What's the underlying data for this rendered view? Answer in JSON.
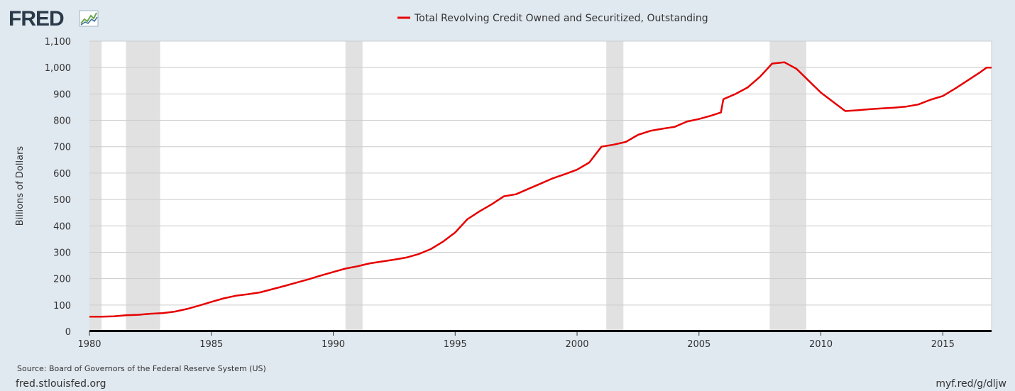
{
  "header": {
    "logo_text": "FRED",
    "legend_label": "Total Revolving Credit Owned and Securitized, Outstanding"
  },
  "footer": {
    "source": "Source: Board of Governors of the Federal Reserve System (US)",
    "site": "fred.stlouisfed.org",
    "short_url": "myf.red/g/dljw"
  },
  "colors": {
    "background": "#e1e9f0",
    "plot_background": "#ffffff",
    "series": "#e60000",
    "recession": "#e1e1e1",
    "grid": "#cccccc",
    "axis": "#000000"
  },
  "chart_data": {
    "type": "line",
    "title": "",
    "xlabel": "",
    "ylabel": "Billions of Dollars",
    "xlim": [
      1980.0,
      2017.0
    ],
    "ylim": [
      0,
      1100
    ],
    "x_ticks": [
      1980,
      1985,
      1990,
      1995,
      2000,
      2005,
      2010,
      2015
    ],
    "x_tick_labels": [
      "1980",
      "1985",
      "1990",
      "1995",
      "2000",
      "2005",
      "2010",
      "2015"
    ],
    "y_ticks": [
      0,
      100,
      200,
      300,
      400,
      500,
      600,
      700,
      800,
      900,
      1000,
      1100
    ],
    "y_tick_labels": [
      "0",
      "100",
      "200",
      "300",
      "400",
      "500",
      "600",
      "700",
      "800",
      "900",
      "1,000",
      "1,100"
    ],
    "grid": true,
    "legend_position": "top-center",
    "recessions": [
      [
        1980.0,
        1980.5
      ],
      [
        1981.5,
        1982.9
      ],
      [
        1990.5,
        1991.2
      ],
      [
        2001.2,
        2001.9
      ],
      [
        2007.9,
        2009.4
      ]
    ],
    "series": [
      {
        "name": "Total Revolving Credit Owned and Securitized, Outstanding",
        "x": [
          1980.0,
          1980.5,
          1981.0,
          1981.5,
          1982.0,
          1982.5,
          1983.0,
          1983.5,
          1984.0,
          1984.5,
          1985.0,
          1985.5,
          1986.0,
          1986.5,
          1987.0,
          1987.5,
          1988.0,
          1988.5,
          1989.0,
          1989.5,
          1990.0,
          1990.5,
          1991.0,
          1991.5,
          1992.0,
          1992.5,
          1993.0,
          1993.5,
          1994.0,
          1994.5,
          1995.0,
          1995.5,
          1996.0,
          1996.5,
          1997.0,
          1997.5,
          1998.0,
          1998.5,
          1999.0,
          1999.5,
          2000.0,
          2000.5,
          2001.0,
          2001.5,
          2002.0,
          2002.5,
          2003.0,
          2003.5,
          2004.0,
          2004.5,
          2005.0,
          2005.5,
          2005.9,
          2006.0,
          2006.5,
          2007.0,
          2007.5,
          2008.0,
          2008.5,
          2009.0,
          2009.5,
          2010.0,
          2010.5,
          2011.0,
          2011.5,
          2012.0,
          2012.5,
          2013.0,
          2013.5,
          2014.0,
          2014.5,
          2015.0,
          2015.5,
          2016.0,
          2016.5,
          2016.8,
          2017.0
        ],
        "values": [
          56,
          56,
          57,
          61,
          63,
          67,
          69,
          75,
          85,
          98,
          112,
          125,
          135,
          141,
          148,
          160,
          172,
          185,
          198,
          212,
          225,
          238,
          247,
          258,
          265,
          272,
          280,
          293,
          312,
          340,
          375,
          425,
          455,
          482,
          512,
          520,
          540,
          560,
          580,
          596,
          613,
          640,
          700,
          708,
          718,
          745,
          760,
          768,
          775,
          795,
          805,
          818,
          830,
          880,
          900,
          925,
          965,
          1015,
          1020,
          995,
          950,
          905,
          870,
          835,
          838,
          842,
          845,
          848,
          852,
          860,
          878,
          892,
          920,
          950,
          980,
          1000,
          1000
        ]
      }
    ]
  }
}
